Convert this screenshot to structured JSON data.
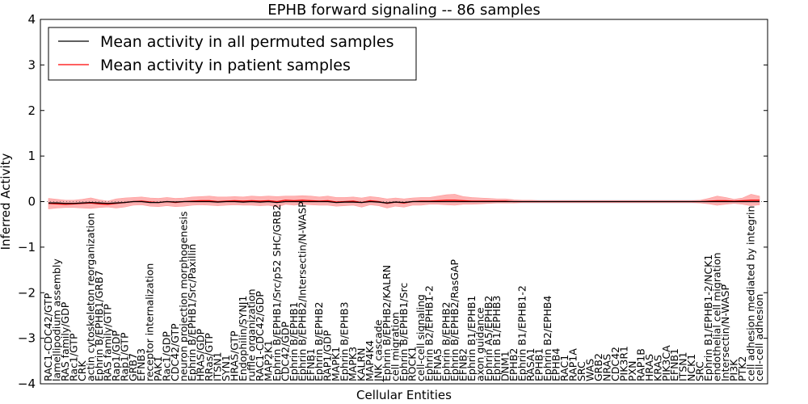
{
  "chart_data": {
    "type": "line",
    "title": "EPHB forward signaling -- 86 samples",
    "xlabel": "Cellular Entities",
    "ylabel": "Inferred Activity",
    "ylim": [
      -4,
      4
    ],
    "yticks": [
      4,
      3,
      2,
      1,
      0,
      -1,
      -2,
      -3,
      -4
    ],
    "ytick_labels": [
      "4",
      "3",
      "2",
      "1",
      "0",
      "−1",
      "−2",
      "−3",
      "−4"
    ],
    "colors": {
      "permuted": "#000000",
      "patient": "#ff0000",
      "patient_band": "#ff9a9a",
      "permuted_band": "#d7d7e6"
    },
    "legend": {
      "location": "upper-left",
      "entries": [
        {
          "label": "Mean activity in all permuted samples",
          "color": "#000000"
        },
        {
          "label": "Mean activity in patient samples",
          "color": "#ff0000"
        }
      ]
    },
    "categories": [
      "RAC1-CDC42/GTP",
      "lamellipodium assembly",
      "RAS family/GDP",
      "Rac1/GTP",
      "CRK",
      "actin cytoskeleton reorganization",
      "Ephrin B/EPHB1/GRB7",
      "RAS family/GTP",
      "Rap1/GDP",
      "Rap1/GTP",
      "GRB7",
      "EFNB3",
      "receptor internalization",
      "PAK1",
      "Rac1/GDP",
      "CDC42/GTP",
      "neuron projection morphogenesis",
      "Ephrin B/EPHB1/Src/Paxillin",
      "HRAS/GDP",
      "RRas/GTP",
      "ITSN1",
      "SYN1",
      "HRAS/GTP",
      "Endophilin/SYNJ1",
      "ruffle organization",
      "RAC1-CDC42/GDP",
      "MAP2K1",
      "Ephrin B/EPHB1/Src/p52 SHC/GRB2",
      "CDC42/GDP",
      "Ephrin B/EPHB1",
      "Ephrin B/EPHB2/Intersectin/N-WASP",
      "EFNB1",
      "Ephrin B/EPHB2",
      "RAP1/GDP",
      "MAPK1",
      "Ephrin B/EPHB3",
      "MAPK3",
      "KALRN",
      "MAP4K4",
      "JNK cascade",
      "Ephrin B/EPHB2/KALRN",
      "cell migration",
      "Ephrin B/EPHB1/Src",
      "ROCK1",
      "cell-cell signaling",
      "Ephrin B2/EPHB1-2",
      "EFNA5",
      "Ephrin B/EPHB2",
      "Ephrin B/EPHB2/RasGAP",
      "EFNB2",
      "Ephrin B1/EPHB1",
      "axon guidance",
      "Ephrin A5/EPHB2",
      "Ephrin B1/EPHB3",
      "DNM1",
      "EPHB2",
      "Ephrin B1/EPHB1-2",
      "RASA1",
      "EPHB1",
      "Ephrin B2/EPHB4",
      "EPHB4",
      "RAC1",
      "RAP1A",
      "SRC",
      "WAS",
      "GRB2",
      "NRAS",
      "CDC42",
      "PIK3R1",
      "PXN",
      "RAP1B",
      "HRAS",
      "KRAS",
      "PIK3CA",
      "EFNB1",
      "ITSN1",
      "NCK1",
      "SRC",
      "Ephrin B1/EPHB1-2/NCK1",
      "endothelial cell migration",
      "Intersectin/N-WASP",
      "PI3K",
      "PTK2",
      "cell adhesion mediated by integrin",
      "cell-cell adhesion"
    ],
    "series": [
      {
        "name": "Mean activity in all permuted samples",
        "values": [
          -0.03,
          -0.03,
          -0.04,
          -0.04,
          -0.03,
          -0.02,
          -0.03,
          -0.04,
          -0.03,
          -0.02,
          0.0,
          0.0,
          -0.02,
          -0.02,
          0.0,
          -0.01,
          0.0,
          0.0,
          0.0,
          0.0,
          -0.01,
          0.0,
          0.0,
          -0.01,
          0.0,
          -0.01,
          0.0,
          -0.02,
          0.0,
          0.0,
          0.0,
          0.0,
          0.0,
          0.0,
          -0.02,
          -0.01,
          -0.01,
          -0.02,
          0.0,
          -0.01,
          -0.03,
          -0.01,
          -0.02,
          0.0,
          0.0,
          0.0,
          0.0,
          0.0,
          0.0,
          0.0,
          0.0,
          0.0,
          0.0,
          0.0,
          0.0,
          0.0,
          0.0,
          0.0,
          0.0,
          0.0,
          0.0,
          0.0,
          0.0,
          0.0,
          0.0,
          0.0,
          0.0,
          0.0,
          0.0,
          0.0,
          0.0,
          0.0,
          0.0,
          0.0,
          0.0,
          0.0,
          0.0,
          0.0,
          0.0,
          0.0,
          0.0,
          0.0,
          0.0,
          0.0,
          0.0
        ],
        "lower": [
          -0.06,
          -0.06,
          -0.07,
          -0.07,
          -0.06,
          -0.05,
          -0.06,
          -0.07,
          -0.06,
          -0.05,
          -0.03,
          -0.03,
          -0.05,
          -0.05,
          -0.03,
          -0.04,
          -0.03,
          -0.03,
          -0.03,
          -0.03,
          -0.04,
          -0.03,
          -0.03,
          -0.04,
          -0.03,
          -0.04,
          -0.03,
          -0.05,
          -0.03,
          -0.03,
          -0.03,
          -0.03,
          -0.03,
          -0.03,
          -0.05,
          -0.04,
          -0.04,
          -0.05,
          -0.03,
          -0.04,
          -0.06,
          -0.04,
          -0.05,
          -0.03,
          -0.03,
          -0.03,
          -0.03,
          -0.03,
          -0.03,
          -0.03,
          -0.03,
          -0.03,
          -0.03,
          -0.03,
          -0.03,
          -0.03,
          -0.03,
          -0.03,
          -0.03,
          -0.03,
          -0.03,
          -0.03,
          -0.03,
          -0.03,
          -0.03,
          -0.03,
          -0.03,
          -0.03,
          -0.03,
          -0.03,
          -0.03,
          -0.03,
          -0.03,
          -0.03,
          -0.03,
          -0.03,
          -0.03,
          -0.03,
          -0.03,
          -0.03,
          -0.03,
          -0.03,
          -0.03,
          -0.03,
          -0.03
        ],
        "upper": [
          0.0,
          0.0,
          -0.01,
          -0.01,
          0.0,
          0.01,
          0.0,
          -0.01,
          0.0,
          0.01,
          0.03,
          0.03,
          0.01,
          0.01,
          0.03,
          0.02,
          0.03,
          0.03,
          0.03,
          0.03,
          0.02,
          0.03,
          0.03,
          0.02,
          0.03,
          0.02,
          0.03,
          0.01,
          0.03,
          0.03,
          0.03,
          0.03,
          0.03,
          0.03,
          0.01,
          0.02,
          0.02,
          0.01,
          0.03,
          0.02,
          0.0,
          0.02,
          0.01,
          0.03,
          0.03,
          0.03,
          0.03,
          0.03,
          0.03,
          0.03,
          0.03,
          0.03,
          0.03,
          0.03,
          0.03,
          0.03,
          0.03,
          0.03,
          0.03,
          0.03,
          0.03,
          0.03,
          0.03,
          0.03,
          0.03,
          0.03,
          0.03,
          0.03,
          0.03,
          0.03,
          0.03,
          0.03,
          0.03,
          0.03,
          0.03,
          0.03,
          0.03,
          0.03,
          0.03,
          0.03,
          0.03,
          0.03,
          0.03,
          0.03,
          0.03
        ]
      },
      {
        "name": "Mean activity in patient samples",
        "values": [
          -0.04,
          -0.05,
          -0.06,
          -0.05,
          -0.04,
          -0.03,
          -0.05,
          -0.06,
          -0.04,
          -0.02,
          0.0,
          0.01,
          -0.01,
          -0.02,
          0.0,
          -0.02,
          0.0,
          0.01,
          0.02,
          0.02,
          0.0,
          0.01,
          0.02,
          0.01,
          0.02,
          0.01,
          0.02,
          0.0,
          0.03,
          0.02,
          0.03,
          0.02,
          0.01,
          0.02,
          -0.01,
          0.0,
          0.01,
          -0.02,
          0.02,
          0.0,
          -0.04,
          -0.01,
          -0.03,
          0.0,
          0.01,
          0.01,
          0.02,
          0.03,
          0.03,
          0.02,
          0.01,
          0.01,
          0.01,
          0.01,
          0.01,
          0.0,
          0.0,
          0.0,
          0.0,
          0.0,
          0.0,
          0.0,
          0.0,
          0.0,
          0.0,
          0.0,
          0.0,
          0.0,
          0.0,
          0.0,
          0.0,
          0.0,
          0.0,
          0.0,
          0.0,
          0.0,
          0.0,
          0.0,
          0.01,
          0.02,
          0.02,
          0.01,
          0.02,
          0.03,
          0.03
        ],
        "lower": [
          -0.16,
          -0.14,
          -0.13,
          -0.13,
          -0.14,
          -0.15,
          -0.13,
          -0.12,
          -0.14,
          -0.12,
          -0.08,
          -0.07,
          -0.1,
          -0.11,
          -0.09,
          -0.11,
          -0.1,
          -0.08,
          -0.07,
          -0.08,
          -0.09,
          -0.08,
          -0.07,
          -0.08,
          -0.08,
          -0.09,
          -0.08,
          -0.12,
          -0.06,
          -0.08,
          -0.06,
          -0.07,
          -0.08,
          -0.08,
          -0.1,
          -0.09,
          -0.08,
          -0.12,
          -0.07,
          -0.09,
          -0.14,
          -0.1,
          -0.12,
          -0.08,
          -0.08,
          -0.06,
          -0.06,
          -0.07,
          -0.08,
          -0.06,
          -0.06,
          -0.05,
          -0.04,
          -0.03,
          -0.03,
          -0.03,
          -0.02,
          -0.02,
          -0.02,
          -0.02,
          -0.02,
          -0.02,
          -0.02,
          -0.02,
          -0.02,
          -0.02,
          -0.02,
          -0.02,
          -0.02,
          -0.02,
          -0.02,
          -0.02,
          -0.02,
          -0.02,
          -0.02,
          -0.02,
          -0.02,
          -0.03,
          -0.05,
          -0.08,
          -0.06,
          -0.04,
          -0.06,
          -0.09,
          -0.07
        ],
        "upper": [
          0.07,
          0.05,
          0.03,
          0.03,
          0.05,
          0.08,
          0.04,
          0.01,
          0.06,
          0.08,
          0.09,
          0.1,
          0.08,
          0.07,
          0.09,
          0.07,
          0.08,
          0.1,
          0.11,
          0.12,
          0.1,
          0.1,
          0.11,
          0.1,
          0.12,
          0.11,
          0.12,
          0.11,
          0.12,
          0.12,
          0.13,
          0.12,
          0.1,
          0.12,
          0.09,
          0.09,
          0.1,
          0.08,
          0.11,
          0.09,
          0.06,
          0.08,
          0.06,
          0.08,
          0.09,
          0.09,
          0.12,
          0.15,
          0.16,
          0.11,
          0.09,
          0.08,
          0.07,
          0.06,
          0.06,
          0.04,
          0.03,
          0.03,
          0.02,
          0.02,
          0.02,
          0.02,
          0.02,
          0.02,
          0.02,
          0.02,
          0.02,
          0.02,
          0.02,
          0.02,
          0.02,
          0.02,
          0.02,
          0.02,
          0.02,
          0.02,
          0.02,
          0.03,
          0.07,
          0.12,
          0.09,
          0.05,
          0.08,
          0.16,
          0.12
        ]
      }
    ]
  }
}
